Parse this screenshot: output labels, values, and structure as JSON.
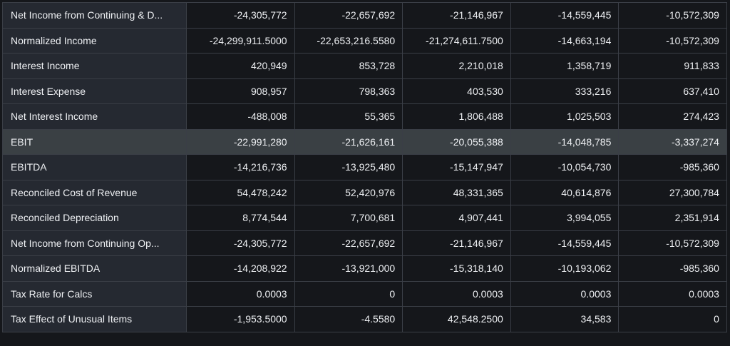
{
  "table": {
    "rows": [
      {
        "label": "Net Income from Continuing & D...",
        "values": [
          "-24,305,772",
          "-22,657,692",
          "-21,146,967",
          "-14,559,445",
          "-10,572,309"
        ]
      },
      {
        "label": "Normalized Income",
        "values": [
          "-24,299,911.5000",
          "-22,653,216.5580",
          "-21,274,611.7500",
          "-14,663,194",
          "-10,572,309"
        ]
      },
      {
        "label": "Interest Income",
        "values": [
          "420,949",
          "853,728",
          "2,210,018",
          "1,358,719",
          "911,833"
        ]
      },
      {
        "label": "Interest Expense",
        "values": [
          "908,957",
          "798,363",
          "403,530",
          "333,216",
          "637,410"
        ]
      },
      {
        "label": "Net Interest Income",
        "values": [
          "-488,008",
          "55,365",
          "1,806,488",
          "1,025,503",
          "274,423"
        ]
      },
      {
        "label": "EBIT",
        "values": [
          "-22,991,280",
          "-21,626,161",
          "-20,055,388",
          "-14,048,785",
          "-3,337,274"
        ],
        "highlighted": true
      },
      {
        "label": "EBITDA",
        "values": [
          "-14,216,736",
          "-13,925,480",
          "-15,147,947",
          "-10,054,730",
          "-985,360"
        ]
      },
      {
        "label": "Reconciled Cost of Revenue",
        "values": [
          "54,478,242",
          "52,420,976",
          "48,331,365",
          "40,614,876",
          "27,300,784"
        ]
      },
      {
        "label": "Reconciled Depreciation",
        "values": [
          "8,774,544",
          "7,700,681",
          "4,907,441",
          "3,994,055",
          "2,351,914"
        ]
      },
      {
        "label": "Net Income from Continuing Op...",
        "values": [
          "-24,305,772",
          "-22,657,692",
          "-21,146,967",
          "-14,559,445",
          "-10,572,309"
        ]
      },
      {
        "label": "Normalized EBITDA",
        "values": [
          "-14,208,922",
          "-13,921,000",
          "-15,318,140",
          "-10,193,062",
          "-985,360"
        ]
      },
      {
        "label": "Tax Rate for Calcs",
        "values": [
          "0.0003",
          "0",
          "0.0003",
          "0.0003",
          "0.0003"
        ]
      },
      {
        "label": "Tax Effect of Unusual Items",
        "values": [
          "-1,953.5000",
          "-4.5580",
          "42,548.2500",
          "34,583",
          "0"
        ]
      }
    ]
  }
}
